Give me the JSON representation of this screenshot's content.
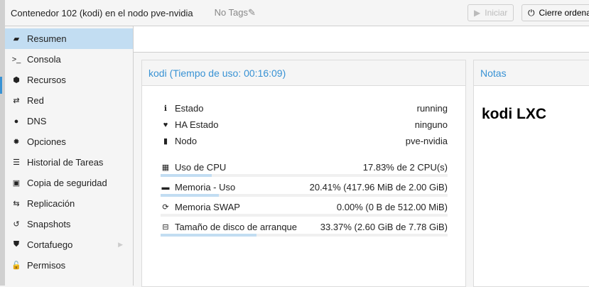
{
  "header": {
    "title": "Contenedor 102 (kodi) en el nodo pve-nvidia",
    "tags": "No Tags",
    "start_label": "Iniciar",
    "shutdown_label": "Cierre ordenado"
  },
  "sidebar": {
    "items": [
      {
        "label": "Resumen",
        "icon": "book-icon",
        "glyph": "▰"
      },
      {
        "label": "Consola",
        "icon": "terminal-icon",
        "glyph": ">_"
      },
      {
        "label": "Recursos",
        "icon": "cube-icon",
        "glyph": "⬢"
      },
      {
        "label": "Red",
        "icon": "exchange-icon",
        "glyph": "⇄"
      },
      {
        "label": "DNS",
        "icon": "globe-icon",
        "glyph": "●"
      },
      {
        "label": "Opciones",
        "icon": "gear-icon",
        "glyph": "✹"
      },
      {
        "label": "Historial de Tareas",
        "icon": "list-icon",
        "glyph": "☰"
      },
      {
        "label": "Copia de seguridad",
        "icon": "floppy-icon",
        "glyph": "▣"
      },
      {
        "label": "Replicación",
        "icon": "retweet-icon",
        "glyph": "⇆"
      },
      {
        "label": "Snapshots",
        "icon": "history-icon",
        "glyph": "↺"
      },
      {
        "label": "Cortafuego",
        "icon": "shield-icon",
        "glyph": "⛊"
      },
      {
        "label": "Permisos",
        "icon": "unlock-icon",
        "glyph": "🔓"
      }
    ]
  },
  "summary": {
    "title": "kodi (Tiempo de uso: 00:16:09)",
    "info": [
      {
        "label": "Estado",
        "value": "running",
        "icon": "info-icon",
        "glyph": "ℹ"
      },
      {
        "label": "HA Estado",
        "value": "ninguno",
        "icon": "heartbeat-icon",
        "glyph": "♥"
      },
      {
        "label": "Nodo",
        "value": "pve-nvidia",
        "icon": "server-icon",
        "glyph": "▮"
      }
    ],
    "usage": [
      {
        "label": "Uso de CPU",
        "value": "17.83% de 2 CPU(s)",
        "percent": 17.83,
        "icon": "cpu-icon",
        "glyph": "▦"
      },
      {
        "label": "Memoria - Uso",
        "value": "20.41% (417.96 MiB de 2.00 GiB)",
        "percent": 20.41,
        "icon": "memory-icon",
        "glyph": "▬"
      },
      {
        "label": "Memoria SWAP",
        "value": "0.00% (0 B de 512.00 MiB)",
        "percent": 0,
        "icon": "refresh-icon",
        "glyph": "⟳"
      },
      {
        "label": "Tamaño de disco de arranque",
        "value": "33.37% (2.60 GiB de 7.78 GiB)",
        "percent": 33.37,
        "icon": "hdd-icon",
        "glyph": "⊟"
      }
    ]
  },
  "notes": {
    "title": "Notas",
    "content": "kodi LXC"
  },
  "colors": {
    "accent": "#3892d4",
    "selected": "#c2ddf2"
  }
}
